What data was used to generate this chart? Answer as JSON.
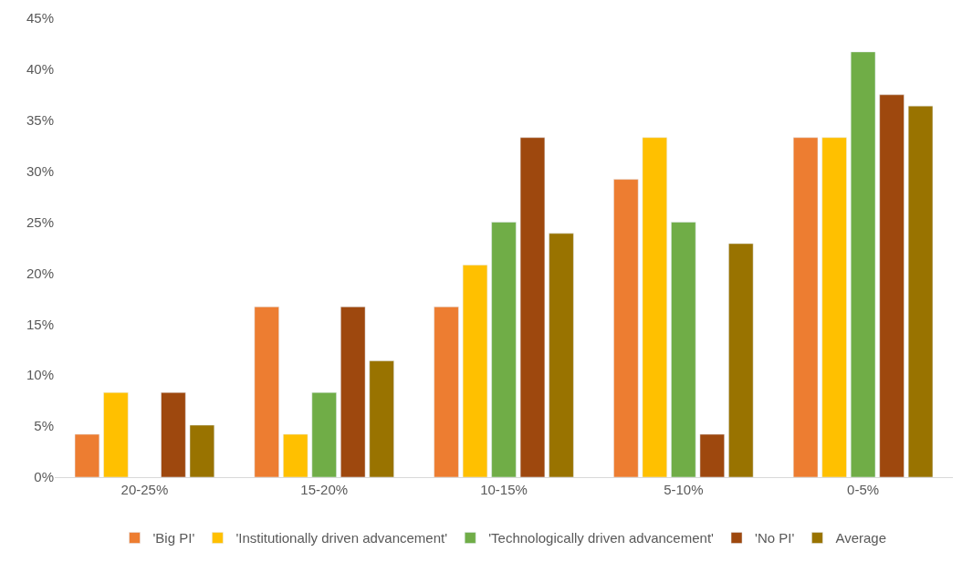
{
  "chart_data": {
    "type": "bar",
    "categories": [
      "20-25%",
      "15-20%",
      "10-15%",
      "5-10%",
      "0-5%"
    ],
    "series": [
      {
        "name": "'Big PI'",
        "color": "#ed7d31",
        "values": [
          4.2,
          16.7,
          16.7,
          29.2,
          33.3
        ]
      },
      {
        "name": "'Institutionally driven advancement'",
        "color": "#ffc000",
        "values": [
          8.3,
          4.2,
          20.8,
          33.3,
          33.3
        ]
      },
      {
        "name": "'Technologically driven advancement'",
        "color": "#70ad47",
        "values": [
          null,
          8.3,
          25,
          25,
          41.7
        ]
      },
      {
        "name": "'No PI'",
        "color": "#9e480e",
        "values": [
          8.3,
          16.7,
          33.3,
          4.2,
          37.5
        ]
      },
      {
        "name": "Average",
        "color": "#997300",
        "values": [
          5.1,
          11.4,
          23.9,
          22.9,
          36.4
        ]
      }
    ],
    "ylim": [
      0,
      45
    ],
    "yticks": [
      {
        "value": 0,
        "label": "0%"
      },
      {
        "value": 5,
        "label": "5%"
      },
      {
        "value": 10,
        "label": "10%"
      },
      {
        "value": 15,
        "label": "15%"
      },
      {
        "value": 20,
        "label": "20%"
      },
      {
        "value": 25,
        "label": "25%"
      },
      {
        "value": 30,
        "label": "30%"
      },
      {
        "value": 35,
        "label": "35%"
      },
      {
        "value": 40,
        "label": "40%"
      },
      {
        "value": 45,
        "label": "45%"
      }
    ],
    "grid": false,
    "legend": "bottom"
  }
}
